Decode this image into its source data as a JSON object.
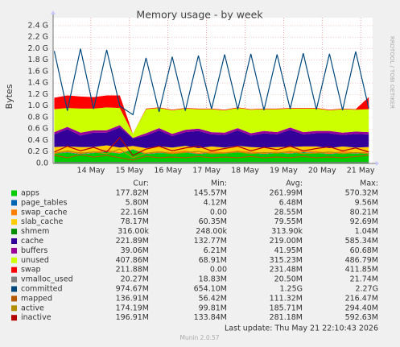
{
  "chart_data": {
    "type": "munin-area",
    "title": "Memory usage - by week",
    "y_label": "Bytes",
    "side_note": "RRDTOOL / TOBI OETIKER",
    "legend_headers": [
      "Cur:",
      "Min:",
      "Avg:",
      "Max:"
    ],
    "last_update": "Last update: Thu May 21 22:10:43 2026",
    "footer": "Munin 2.0.57",
    "grid": true,
    "xlim": [
      13.02,
      21.31
    ],
    "xticks": [
      {
        "value": 14,
        "label": "14 May"
      },
      {
        "value": 15,
        "label": "15 May"
      },
      {
        "value": 16,
        "label": "16 May"
      },
      {
        "value": 17,
        "label": "17 May"
      },
      {
        "value": 18,
        "label": "18 May"
      },
      {
        "value": 19,
        "label": "19 May"
      },
      {
        "value": 20,
        "label": "20 May"
      },
      {
        "value": 21,
        "label": "21 May"
      }
    ],
    "ylim": [
      0,
      2.54
    ],
    "yticks": [
      {
        "value": 0,
        "label": "0.0"
      },
      {
        "value": 0.2,
        "label": "0.2 G"
      },
      {
        "value": 0.4,
        "label": "0.4 G"
      },
      {
        "value": 0.6,
        "label": "0.6 G"
      },
      {
        "value": 0.8,
        "label": "0.8 G"
      },
      {
        "value": 1.0,
        "label": "1.0 G"
      },
      {
        "value": 1.2,
        "label": "1.2 G"
      },
      {
        "value": 1.4,
        "label": "1.4 G"
      },
      {
        "value": 1.6,
        "label": "1.6 G"
      },
      {
        "value": 1.8,
        "label": "1.8 G"
      },
      {
        "value": 2.0,
        "label": "2.0 G"
      },
      {
        "value": 2.2,
        "label": "2.2 G"
      },
      {
        "value": 2.4,
        "label": "2.4 G"
      }
    ],
    "x": [
      13.05,
      13.39,
      13.73,
      14.07,
      14.41,
      14.75,
      15.09,
      15.43,
      15.77,
      16.11,
      16.45,
      16.79,
      17.13,
      17.47,
      17.81,
      18.15,
      18.49,
      18.83,
      19.17,
      19.51,
      19.85,
      20.19,
      20.53,
      20.87,
      21.21
    ],
    "series": [
      {
        "name": "apps",
        "color": "#00cc00",
        "kind": "area",
        "cur": "177.82M",
        "min": "145.57M",
        "avg": "261.99M",
        "max": "570.32M",
        "values": [
          0.17,
          0.19,
          0.16,
          0.18,
          0.2,
          0.17,
          0.24,
          0.16,
          0.18,
          0.17,
          0.19,
          0.16,
          0.18,
          0.17,
          0.19,
          0.18,
          0.16,
          0.18,
          0.17,
          0.19,
          0.18,
          0.16,
          0.18,
          0.17,
          0.18
        ]
      },
      {
        "name": "page_tables",
        "color": "#0066b3",
        "kind": "area",
        "cur": "5.80M",
        "min": "4.12M",
        "avg": "6.48M",
        "max": "9.56M",
        "values": [
          0.006,
          0.006,
          0.006,
          0.006,
          0.006,
          0.006,
          0.005,
          0.006,
          0.006,
          0.006,
          0.006,
          0.006,
          0.006,
          0.006,
          0.006,
          0.006,
          0.006,
          0.006,
          0.006,
          0.006,
          0.006,
          0.006,
          0.006,
          0.006,
          0.006
        ]
      },
      {
        "name": "swap_cache",
        "color": "#ff8000",
        "kind": "area",
        "cur": "22.16M",
        "min": "0.00",
        "avg": "28.55M",
        "max": "80.21M",
        "values": [
          0.03,
          0.02,
          0.03,
          0.02,
          0.03,
          0.02,
          0,
          0.02,
          0.03,
          0.02,
          0.03,
          0.02,
          0.03,
          0.02,
          0.03,
          0.02,
          0.03,
          0.02,
          0.03,
          0.02,
          0.03,
          0.02,
          0.03,
          0.02,
          0.02
        ]
      },
      {
        "name": "slab_cache",
        "color": "#ffcc00",
        "kind": "area",
        "cur": "78.17M",
        "min": "60.35M",
        "avg": "79.55M",
        "max": "92.69M",
        "values": [
          0.08,
          0.08,
          0.09,
          0.08,
          0.08,
          0.08,
          0.06,
          0.08,
          0.08,
          0.08,
          0.08,
          0.08,
          0.08,
          0.08,
          0.08,
          0.08,
          0.08,
          0.08,
          0.08,
          0.08,
          0.08,
          0.08,
          0.08,
          0.08,
          0.08
        ]
      },
      {
        "name": "shmem",
        "color": "#008f00",
        "kind": "area",
        "cur": "316.00k",
        "min": "248.00k",
        "avg": "313.90k",
        "max": "1.04M",
        "values": [
          0.0003,
          0.0003,
          0.0003,
          0.0003,
          0.0003,
          0.0003,
          0.0003,
          0.0003,
          0.0003,
          0.0003,
          0.0003,
          0.0003,
          0.0003,
          0.0003,
          0.0003,
          0.0003,
          0.0003,
          0.0003,
          0.0003,
          0.0003,
          0.0003,
          0.0003,
          0.0003,
          0.0003,
          0.0003
        ]
      },
      {
        "name": "cache",
        "color": "#330099",
        "kind": "area",
        "cur": "221.89M",
        "min": "132.77M",
        "avg": "219.00M",
        "max": "585.34M",
        "values": [
          0.22,
          0.3,
          0.2,
          0.25,
          0.22,
          0.35,
          0.13,
          0.22,
          0.28,
          0.2,
          0.24,
          0.3,
          0.21,
          0.22,
          0.27,
          0.2,
          0.25,
          0.22,
          0.3,
          0.21,
          0.23,
          0.26,
          0.2,
          0.24,
          0.22
        ]
      },
      {
        "name": "buffers",
        "color": "#990099",
        "kind": "area",
        "cur": "39.06M",
        "min": "6.21M",
        "avg": "41.95M",
        "max": "60.68M",
        "values": [
          0.04,
          0.04,
          0.05,
          0.04,
          0.04,
          0.04,
          0.01,
          0.04,
          0.04,
          0.04,
          0.04,
          0.04,
          0.04,
          0.04,
          0.04,
          0.04,
          0.04,
          0.04,
          0.04,
          0.04,
          0.04,
          0.04,
          0.04,
          0.04,
          0.04
        ]
      },
      {
        "name": "unused",
        "color": "#ccff00",
        "kind": "area",
        "cur": "407.86M",
        "min": "68.91M",
        "avg": "315.23M",
        "max": "486.79M",
        "values": [
          0.4,
          0.33,
          0.42,
          0.38,
          0.4,
          0.3,
          0.07,
          0.42,
          0.35,
          0.41,
          0.37,
          0.34,
          0.4,
          0.39,
          0.35,
          0.41,
          0.38,
          0.4,
          0.33,
          0.41,
          0.39,
          0.36,
          0.41,
          0.38,
          0.4
        ]
      },
      {
        "name": "swap",
        "color": "#ff0000",
        "kind": "area",
        "cur": "211.88M",
        "min": "0.00",
        "avg": "231.48M",
        "max": "411.85M",
        "values": [
          0.2,
          0.22,
          0.21,
          0.2,
          0.21,
          0.22,
          0,
          0.01,
          0.01,
          0.01,
          0.01,
          0.01,
          0.01,
          0.01,
          0.01,
          0.01,
          0.01,
          0.01,
          0.01,
          0.01,
          0.01,
          0.01,
          0.01,
          0.01,
          0.21
        ]
      },
      {
        "name": "vmalloc_used",
        "color": "#808080",
        "kind": "line",
        "cur": "20.27M",
        "min": "18.83M",
        "avg": "20.50M",
        "max": "21.74M",
        "values": [
          0.02,
          0.02,
          0.02,
          0.02,
          0.02,
          0.02,
          0.02,
          0.02,
          0.02,
          0.02,
          0.02,
          0.02,
          0.02,
          0.02,
          0.02,
          0.02,
          0.02,
          0.02,
          0.02,
          0.02,
          0.02,
          0.02,
          0.02,
          0.02,
          0.02
        ]
      },
      {
        "name": "committed",
        "color": "#00487d",
        "kind": "line",
        "cur": "974.67M",
        "min": "654.10M",
        "avg": "1.25G",
        "max": "2.27G",
        "values": [
          1.96,
          0.92,
          2.0,
          0.95,
          1.98,
          1.0,
          0.85,
          1.84,
          0.9,
          1.86,
          0.92,
          1.88,
          0.95,
          1.9,
          0.94,
          1.91,
          0.93,
          1.9,
          0.95,
          1.92,
          0.94,
          1.91,
          0.93,
          1.95,
          0.96
        ]
      },
      {
        "name": "mapped",
        "color": "#b35a00",
        "kind": "line",
        "cur": "136.91M",
        "min": "56.42M",
        "avg": "111.32M",
        "max": "216.47M",
        "values": [
          0.14,
          0.1,
          0.15,
          0.11,
          0.14,
          0.1,
          0.06,
          0.12,
          0.1,
          0.11,
          0.1,
          0.12,
          0.1,
          0.11,
          0.1,
          0.12,
          0.1,
          0.11,
          0.1,
          0.12,
          0.1,
          0.11,
          0.1,
          0.12,
          0.14
        ]
      },
      {
        "name": "active",
        "color": "#b38f00",
        "kind": "line",
        "cur": "174.19M",
        "min": "99.81M",
        "avg": "185.71M",
        "max": "294.40M",
        "values": [
          0.17,
          0.22,
          0.18,
          0.2,
          0.17,
          0.25,
          0.1,
          0.18,
          0.2,
          0.17,
          0.19,
          0.21,
          0.17,
          0.18,
          0.2,
          0.17,
          0.19,
          0.18,
          0.21,
          0.17,
          0.18,
          0.2,
          0.17,
          0.19,
          0.17
        ]
      },
      {
        "name": "inactive",
        "color": "#b30000",
        "kind": "line",
        "cur": "196.91M",
        "min": "133.84M",
        "avg": "281.18M",
        "max": "592.63M",
        "values": [
          0.2,
          0.3,
          0.22,
          0.28,
          0.2,
          0.45,
          0.14,
          0.25,
          0.3,
          0.22,
          0.27,
          0.3,
          0.22,
          0.26,
          0.3,
          0.22,
          0.28,
          0.24,
          0.3,
          0.22,
          0.26,
          0.29,
          0.22,
          0.27,
          0.2
        ]
      }
    ]
  }
}
